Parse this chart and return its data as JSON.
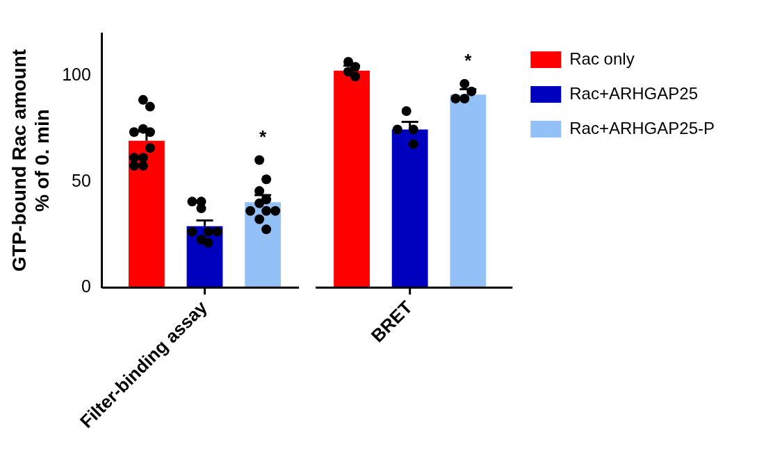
{
  "chart_data": {
    "type": "bar",
    "ylabel": "GTP-bound Rac amount\n% of 0. min",
    "categories": [
      "Filter-binding assay",
      "BRET"
    ],
    "series": [
      {
        "name": "Rac only",
        "color": "#ff0000",
        "values": [
          69.3,
          102.4
        ],
        "errors": [
          [
            69.3,
            73.7
          ],
          [
            102.4,
            104.8
          ]
        ]
      },
      {
        "name": "Rac+ARHGAP25",
        "color": "#0000bf",
        "values": [
          29.0,
          74.6
        ],
        "errors": [
          [
            29.0,
            31.7
          ],
          [
            74.6,
            78.2
          ]
        ]
      },
      {
        "name": "Rac+ARHGAP25-P",
        "color": "#93c0f7",
        "values": [
          40.3,
          91.1
        ],
        "errors": [
          [
            40.3,
            43.7
          ],
          [
            91.1,
            93.6
          ]
        ]
      },
      {
        "type": "scatter",
        "color": "#000000",
        "x": [
          "Filter-binding assay",
          "Filter-binding assay",
          "Filter-binding assay",
          "Filter-binding assay",
          "Filter-binding assay",
          "Filter-binding assay",
          "Filter-binding assay",
          "Filter-binding assay",
          "Filter-binding assay",
          "Filter-binding assay",
          "BRET",
          "BRET",
          "BRET",
          "BRET"
        ],
        "values": [
          88.6,
          85.4,
          74.9,
          73.4,
          73.4,
          65.9,
          61.3,
          61.3,
          57.5,
          57.5,
          106.6,
          104.2,
          101.9,
          99.6
        ]
      },
      {
        "type": "scatter",
        "color": "#000000",
        "x": [
          "Filter-binding assay",
          "Filter-binding assay",
          "Filter-binding assay",
          "Filter-binding assay",
          "Filter-binding assay",
          "Filter-binding assay",
          "Filter-binding assay",
          "Filter-binding assay",
          "BRET",
          "BRET",
          "BRET",
          "BRET"
        ],
        "values": [
          40.6,
          40.6,
          37.4,
          26.4,
          26.4,
          26.4,
          22.6,
          21.1,
          83.3,
          74.6,
          74.6,
          67.7
        ]
      },
      {
        "type": "scatter",
        "color": "#000000",
        "x": [
          "Filter-binding assay",
          "Filter-binding assay",
          "Filter-binding assay",
          "Filter-binding assay",
          "Filter-binding assay",
          "Filter-binding assay",
          "Filter-binding assay",
          "Filter-binding assay",
          "Filter-binding assay",
          "Filter-binding assay",
          "BRET",
          "BRET",
          "BRET",
          "BRET"
        ],
        "values": [
          60.2,
          51.1,
          45.6,
          41.6,
          39.8,
          36.2,
          36.2,
          36.2,
          32.3,
          27.5,
          96.2,
          92.6,
          89.2,
          89.2
        ]
      }
    ],
    "ylim": [
      0,
      120
    ],
    "yticks": [
      0,
      50,
      100
    ],
    "grid": false,
    "legend": "right",
    "marker": "circle",
    "annotations": [
      "*",
      "*"
    ]
  }
}
